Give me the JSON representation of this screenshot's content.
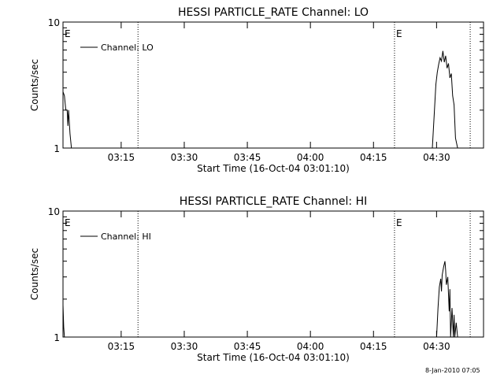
{
  "timestamp": "8-Jan-2010 07:05",
  "chart_data": [
    {
      "type": "line",
      "title": "HESSI PARTICLE_RATE Channel: LO",
      "xlabel": "Start Time (16-Oct-04 03:01:10)",
      "ylabel": "Counts/sec",
      "y_scale": "log",
      "ylim": [
        1,
        10
      ],
      "ytick_labels": [
        "1",
        "10"
      ],
      "xlim": [
        "03:01:10",
        "04:41:10"
      ],
      "xtick_labels": [
        "03:15",
        "03:30",
        "03:45",
        "04:00",
        "04:15",
        "04:30"
      ],
      "legend": {
        "placement": "top-left",
        "entries": [
          "Channel: LO"
        ]
      },
      "marker_lines": [
        {
          "x": "03:19:00",
          "label": ""
        },
        {
          "x": "04:20:00",
          "label": "E"
        },
        {
          "x": "04:38:00",
          "label": ""
        }
      ],
      "edge_label": "E",
      "series": [
        {
          "name": "Channel: LO",
          "x": [
            "03:01:10",
            "03:01:30",
            "03:01:50",
            "03:02:10",
            "03:02:20",
            "03:02:30",
            "03:02:50",
            "03:03:10",
            "03:03:30",
            "04:28:30",
            "04:29:00",
            "04:29:30",
            "04:29:50",
            "04:30:10",
            "04:30:30",
            "04:30:50",
            "04:31:10",
            "04:31:30",
            "04:31:50",
            "04:32:10",
            "04:32:30",
            "04:32:50",
            "04:33:10",
            "04:33:30",
            "04:33:50",
            "04:34:10",
            "04:34:30",
            "04:35:00"
          ],
          "y": [
            2.8,
            2.6,
            2.0,
            2.0,
            1.5,
            2.0,
            1.3,
            1.0,
            1.0,
            1.0,
            1.0,
            2.0,
            3.2,
            4.0,
            4.6,
            5.2,
            4.9,
            5.9,
            4.8,
            5.4,
            4.3,
            4.7,
            3.6,
            3.9,
            2.6,
            2.2,
            1.2,
            1.0
          ]
        }
      ]
    },
    {
      "type": "line",
      "title": "HESSI PARTICLE_RATE Channel: HI",
      "xlabel": "Start Time (16-Oct-04 03:01:10)",
      "ylabel": "Counts/sec",
      "y_scale": "log",
      "ylim": [
        1,
        10
      ],
      "ytick_labels": [
        "1",
        "10"
      ],
      "xlim": [
        "03:01:10",
        "04:41:10"
      ],
      "xtick_labels": [
        "03:15",
        "03:30",
        "03:45",
        "04:00",
        "04:15",
        "04:30"
      ],
      "legend": {
        "placement": "top-left",
        "entries": [
          "Channel: HI"
        ]
      },
      "marker_lines": [
        {
          "x": "03:19:00",
          "label": ""
        },
        {
          "x": "04:20:00",
          "label": "E"
        },
        {
          "x": "04:38:00",
          "label": ""
        }
      ],
      "edge_label": "E",
      "series": [
        {
          "name": "Channel: HI",
          "x": [
            "03:01:10",
            "03:01:20",
            "03:01:30",
            "04:30:00",
            "04:30:20",
            "04:30:40",
            "04:31:00",
            "04:31:10",
            "04:31:20",
            "04:31:40",
            "04:32:00",
            "04:32:10",
            "04:32:20",
            "04:32:40",
            "04:33:00",
            "04:33:10",
            "04:33:20",
            "04:33:40",
            "04:34:00",
            "04:34:10",
            "04:34:20",
            "04:34:40",
            "04:35:00"
          ],
          "y": [
            1.8,
            1.2,
            1.0,
            1.0,
            1.7,
            2.5,
            2.9,
            2.3,
            3.1,
            3.6,
            4.0,
            3.4,
            2.6,
            3.0,
            1.6,
            2.4,
            1.0,
            1.7,
            1.0,
            1.5,
            1.0,
            1.3,
            1.0
          ]
        }
      ]
    }
  ]
}
